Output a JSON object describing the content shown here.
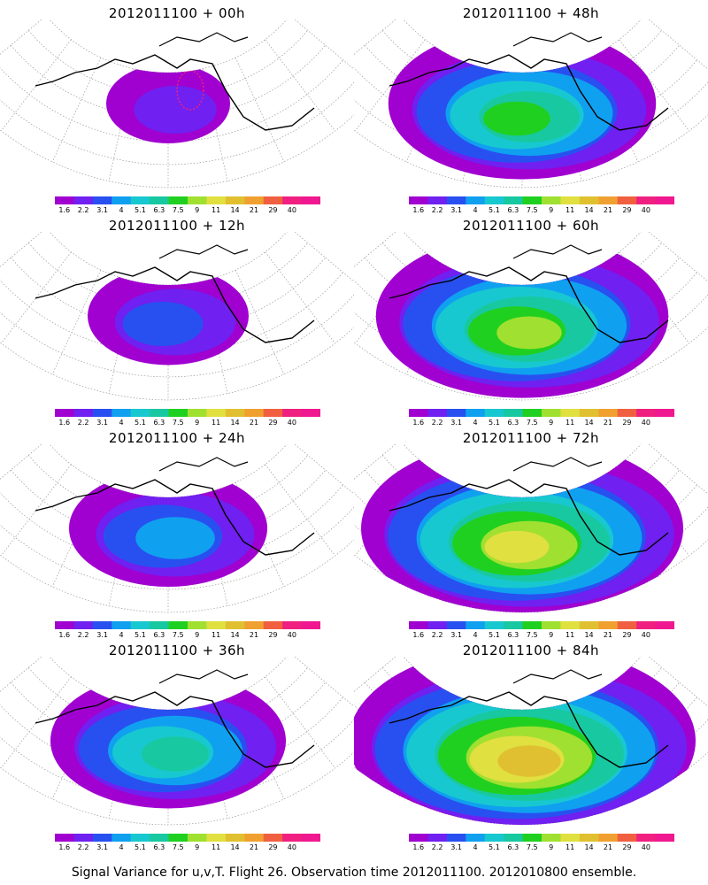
{
  "panels": [
    {
      "title": "2012011100 + 00h",
      "level": 0.0
    },
    {
      "title": "2012011100 + 48h",
      "level": 0.58
    },
    {
      "title": "2012011100 + 12h",
      "level": 0.15
    },
    {
      "title": "2012011100 + 60h",
      "level": 0.68
    },
    {
      "title": "2012011100 + 24h",
      "level": 0.3
    },
    {
      "title": "2012011100 + 72h",
      "level": 0.8
    },
    {
      "title": "2012011100 + 36h",
      "level": 0.45
    },
    {
      "title": "2012011100 + 84h",
      "level": 0.9
    }
  ],
  "colorbar": {
    "labels": [
      "1.6",
      "2.2",
      "3.1",
      "4",
      "5.1",
      "6.3",
      "7.5",
      "9",
      "11",
      "14",
      "21",
      "29",
      "40"
    ],
    "colors": [
      "#a000d0",
      "#7020f0",
      "#2850f0",
      "#10a0f0",
      "#18c8d0",
      "#18c8a0",
      "#20d020",
      "#a0e030",
      "#e0e040",
      "#e0c030",
      "#f0a030",
      "#f06040",
      "#f02080",
      "#f01890"
    ]
  },
  "caption": "Signal Variance for u,v,T. Flight 26. Observation time 2012011100. 2012010800 ensemble."
}
